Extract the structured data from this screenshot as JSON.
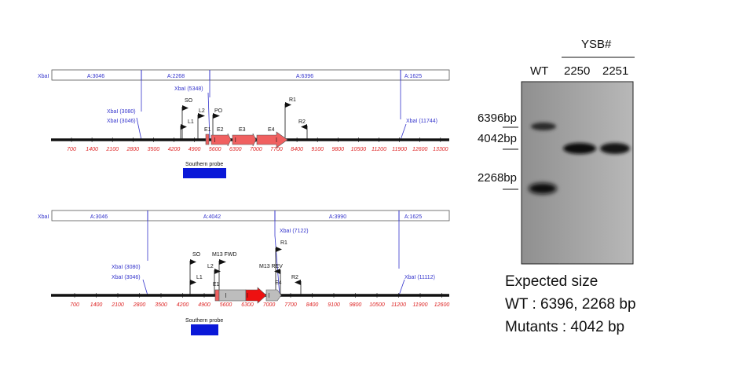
{
  "maps": [
    {
      "xbal_left": "XbaI",
      "segments": [
        "A:3046",
        "A:2268",
        "A:6396",
        "A:1625"
      ],
      "ticks": [
        "700",
        "1400",
        "2100",
        "2800",
        "3500",
        "4200",
        "4900",
        "5600",
        "6300",
        "7000",
        "7700",
        "8400",
        "9100",
        "9800",
        "10500",
        "11200",
        "11900",
        "12600",
        "13300"
      ],
      "site_labels": [
        "XbaI (3080)",
        "XbaI (3046)",
        "XbaI (5348)",
        "XbaI (11744)"
      ],
      "primers": [
        "SO",
        "L2",
        "L1",
        "PO",
        "R1",
        "R2"
      ],
      "exons": [
        "E1",
        "E2",
        "E3",
        "E4"
      ],
      "probe_label": "Southern probe"
    },
    {
      "xbal_left": "XbaI",
      "segments": [
        "A:3046",
        "A:4042",
        "A:3990",
        "A:1625"
      ],
      "ticks": [
        "700",
        "1400",
        "2100",
        "2800",
        "3500",
        "4200",
        "4900",
        "5600",
        "6300",
        "7000",
        "7700",
        "8400",
        "9100",
        "9800",
        "10500",
        "11200",
        "11900",
        "12600"
      ],
      "site_labels": [
        "XbaI (3080)",
        "XbaI (3046)",
        "XbaI (7122)",
        "XbaI (11112)"
      ],
      "primers": [
        "SO",
        "M13 FWD",
        "L2",
        "L1",
        "R1",
        "M13 REV",
        "R2"
      ],
      "exons": [
        "E1",
        "E4"
      ],
      "probe_label": "Southern probe"
    }
  ],
  "gel": {
    "group_label": "YSB#",
    "lanes": [
      "WT",
      "2250",
      "2251"
    ],
    "markers": [
      "6396bp",
      "4042bp",
      "2268bp"
    ]
  },
  "expected": {
    "line1": "Expected size",
    "line2": "WT : 6396, 2268 bp",
    "line3": "Mutants : 4042 bp"
  },
  "colors": {
    "site_blue": "#3333cc",
    "tick_red": "#dd2222",
    "exon_red": "#f06060",
    "probe_blue": "#0a18d8",
    "insert_gray": "#bdbdbd",
    "arrow_red": "#ee1111"
  }
}
